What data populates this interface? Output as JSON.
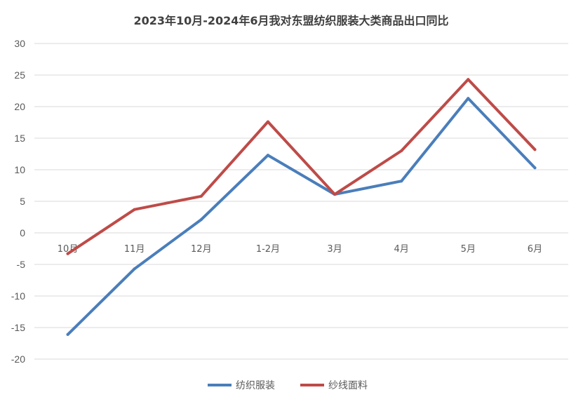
{
  "chart_data": {
    "type": "line",
    "title": "2023年10月-2024年6月我对东盟纺织服装大类商品出口同比",
    "categories": [
      "10月",
      "11月",
      "12月",
      "1-2月",
      "3月",
      "4月",
      "5月",
      "6月"
    ],
    "ylim": [
      -20,
      30
    ],
    "yticks": [
      30,
      25,
      20,
      15,
      10,
      5,
      0,
      -5,
      -10,
      -15,
      -20
    ],
    "grid": true,
    "legend": "bottom",
    "series": [
      {
        "name": "纺织服装",
        "color": "#4a7ebb",
        "values": [
          -16.1,
          -5.7,
          2.1,
          12.3,
          6.1,
          8.2,
          21.3,
          10.3
        ]
      },
      {
        "name": "纱线面料",
        "color": "#be4b48",
        "values": [
          -3.3,
          3.7,
          5.8,
          17.6,
          6.1,
          13.0,
          24.3,
          13.2
        ]
      }
    ]
  }
}
